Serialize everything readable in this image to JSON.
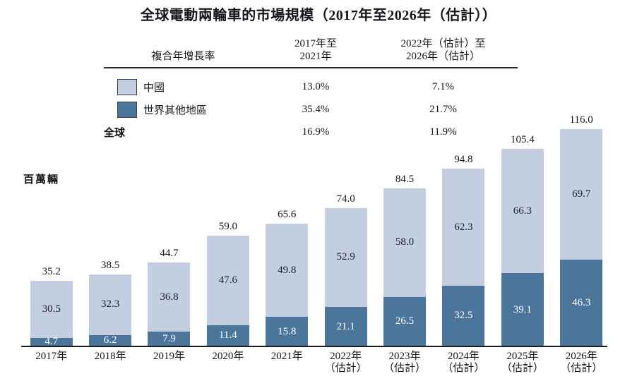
{
  "title": "全球電動兩輪車的市場規模（2017年至2026年（估計））",
  "unit_label": "百萬輛",
  "colors": {
    "china_light_blue": "#c3cfe1",
    "row_dark_blue": "#4c759c",
    "axis": "#1a1a1a"
  },
  "cagr_table": {
    "header": {
      "label": "複合年增長率",
      "period1_line1": "2017年至",
      "period1_line2": "2021年",
      "period2_line1": "2022年（估計）至",
      "period2_line2": "2026年（估計）"
    },
    "rows": [
      {
        "label": "中國",
        "swatch": "light",
        "period1": "13.0%",
        "period2": "7.1%"
      },
      {
        "label": "世界其他地區",
        "swatch": "dark",
        "period1": "35.4%",
        "period2": "21.7%"
      },
      {
        "label": "全球",
        "swatch": "none",
        "period1": "16.9%",
        "period2": "11.9%"
      }
    ]
  },
  "chart_data": {
    "type": "bar",
    "stacked": true,
    "title": "全球電動兩輪車的市場規模（2017年至2026年（估計））",
    "ylabel": "百萬輛",
    "grid": false,
    "legend_position": "top-table",
    "ylim": [
      0,
      120
    ],
    "categories": [
      {
        "label": "2017年",
        "sub": ""
      },
      {
        "label": "2018年",
        "sub": ""
      },
      {
        "label": "2019年",
        "sub": ""
      },
      {
        "label": "2020年",
        "sub": ""
      },
      {
        "label": "2021年",
        "sub": ""
      },
      {
        "label": "2022年",
        "sub": "（估計）"
      },
      {
        "label": "2023年",
        "sub": "（估計）"
      },
      {
        "label": "2024年",
        "sub": "（估計）"
      },
      {
        "label": "2025年",
        "sub": "（估計）"
      },
      {
        "label": "2026年",
        "sub": "（估計）"
      }
    ],
    "series": [
      {
        "name": "中國",
        "color": "#c3cfe1",
        "values": [
          30.5,
          32.3,
          36.8,
          47.6,
          49.8,
          52.9,
          58.0,
          62.3,
          66.3,
          69.7
        ]
      },
      {
        "name": "世界其他地區",
        "color": "#4c759c",
        "values": [
          4.7,
          6.2,
          7.9,
          11.4,
          15.8,
          21.1,
          26.5,
          32.5,
          39.1,
          46.3
        ]
      }
    ],
    "totals": [
      35.2,
      38.5,
      44.7,
      59.0,
      65.6,
      74.0,
      84.5,
      94.8,
      105.4,
      116.0
    ]
  }
}
